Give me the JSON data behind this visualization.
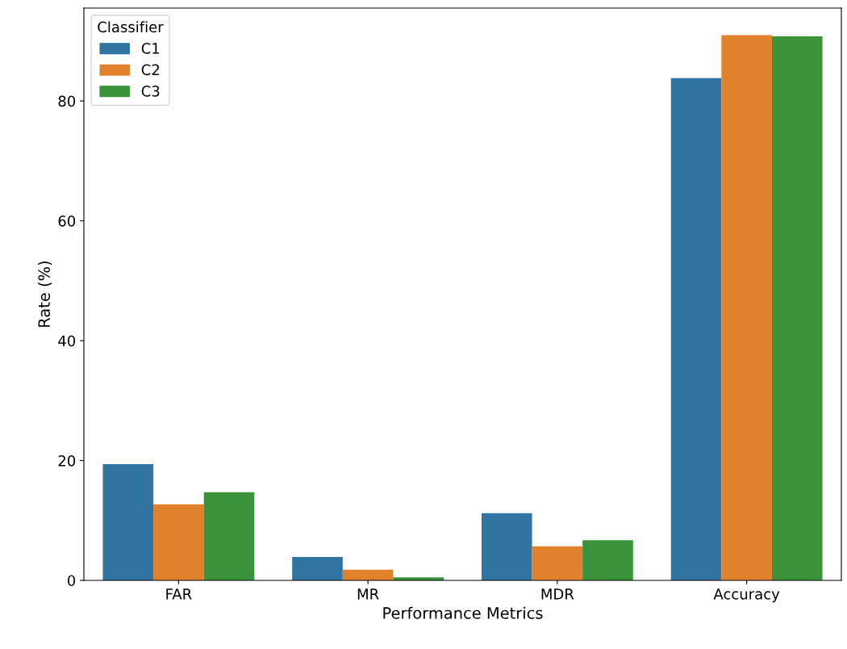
{
  "chart_data": {
    "type": "bar",
    "xlabel": "Performance Metrics",
    "ylabel": "Rate (%)",
    "categories": [
      "FAR",
      "MR",
      "MDR",
      "Accuracy"
    ],
    "series": [
      {
        "name": "C1",
        "color": "#3274a1",
        "values": [
          19.4,
          3.9,
          11.2,
          83.8
        ]
      },
      {
        "name": "C2",
        "color": "#e1812c",
        "values": [
          12.7,
          1.8,
          5.7,
          91.0
        ]
      },
      {
        "name": "C3",
        "color": "#3a923a",
        "values": [
          14.7,
          0.5,
          6.7,
          90.8
        ]
      }
    ],
    "ylim": [
      0,
      95.5
    ],
    "yticks": [
      0,
      20,
      40,
      60,
      80
    ],
    "legend": "top left",
    "legend_title": "Classifier",
    "grid": false
  }
}
